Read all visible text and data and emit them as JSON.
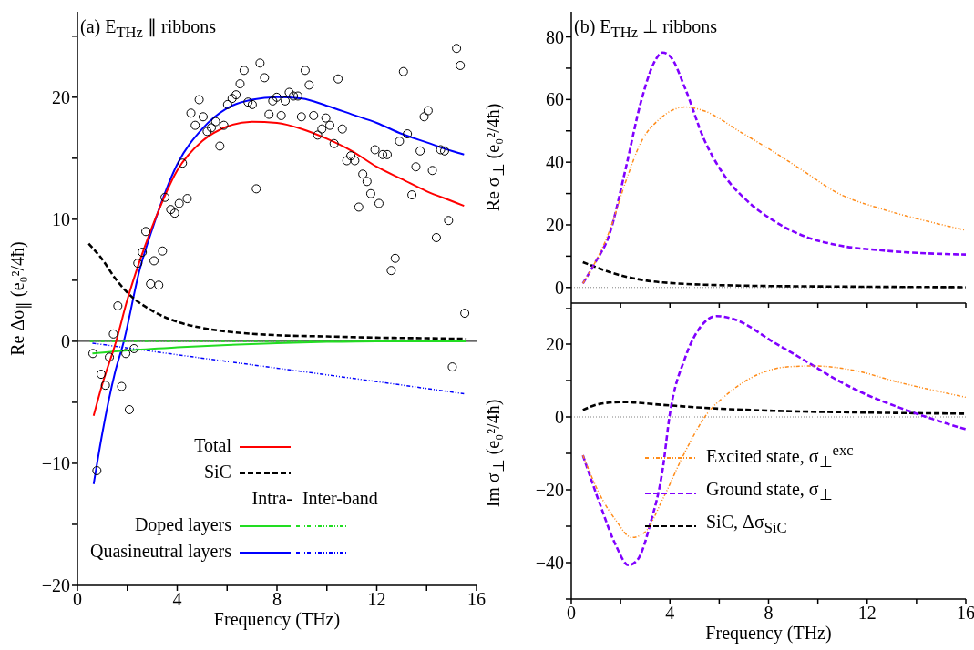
{
  "chart_data": [
    {
      "type": "line",
      "title": "(a) E$_{THz}$ ∥ ribbons",
      "xlabel": "Frequency (THz)",
      "ylabel": "Re Δσ$_{∥}$ (e₀²/4ħ)",
      "xlim": [
        0,
        16
      ],
      "ylim": [
        -20,
        27
      ],
      "xticks": [
        0,
        {
          "value": 2,
          "label": null
        },
        4,
        {
          "value": 6,
          "label": null
        },
        8,
        {
          "value": 10,
          "label": null
        },
        12,
        {
          "value": 14,
          "label": null
        },
        16
      ],
      "yticks": [
        -20,
        {
          "value": -15,
          "label": null
        },
        -10,
        {
          "value": -5,
          "label": null
        },
        0,
        {
          "value": 5,
          "label": null
        },
        10,
        {
          "value": 15,
          "label": null
        },
        20,
        {
          "value": 25,
          "label": null
        }
      ],
      "legend": "bottom",
      "annotations": [
        "Intra-",
        "Inter-band"
      ],
      "ref_lines": [
        {
          "axis": "y",
          "value": 0,
          "color": "#000000",
          "line_style": "solid"
        }
      ],
      "series": [
        {
          "type": "scatter",
          "color": "#000000",
          "marker": "circle",
          "x": [
            15.2,
            15.35,
            7.32,
            6.68,
            7.5,
            6.52,
            9.13,
            9.29,
            10.45,
            13.07,
            4.88,
            6.36,
            6.2,
            6.02,
            4.55,
            5.04,
            4.72,
            5.54,
            5.37,
            5.2,
            5.87,
            6.84,
            7.01,
            7.68,
            7.83,
            7.99,
            8.17,
            8.33,
            8.49,
            8.66,
            8.84,
            8.98,
            9.47,
            9.96,
            9.8,
            10.12,
            9.63,
            10.29,
            10.62,
            5.71,
            4.21,
            3.51,
            3.74,
            3.9,
            4.08,
            4.4,
            7.17,
            10.8,
            10.96,
            11.12,
            11.93,
            12.24,
            12.42,
            11.44,
            11.61,
            11.76,
            12.09,
            11.28,
            12.91,
            13.23,
            13.74,
            13.9,
            14.06,
            13.57,
            14.23,
            14.56,
            14.72,
            13.41,
            14.88,
            14.39,
            12.74,
            12.58,
            15.53,
            2.74,
            2.6,
            2.42,
            3.07,
            3.41,
            2.93,
            3.26,
            1.62,
            1.44,
            2.27,
            0.62,
            1.28,
            1.94,
            0.95,
            1.12,
            1.77,
            2.08,
            0.78,
            15.03
          ],
          "values": [
            24.0,
            22.6,
            22.8,
            22.2,
            21.6,
            21.1,
            22.2,
            21.0,
            21.5,
            22.1,
            19.8,
            20.2,
            19.9,
            19.4,
            18.7,
            18.4,
            17.7,
            18.0,
            17.5,
            17.2,
            17.7,
            19.6,
            19.4,
            18.6,
            19.7,
            20.0,
            18.5,
            19.7,
            20.4,
            20.1,
            20.1,
            18.4,
            18.5,
            18.3,
            17.4,
            17.7,
            16.9,
            16.2,
            17.4,
            16.0,
            14.6,
            11.8,
            10.8,
            10.5,
            11.3,
            11.7,
            12.5,
            14.8,
            15.2,
            14.8,
            15.7,
            15.3,
            15.3,
            13.7,
            13.1,
            12.1,
            11.3,
            11.0,
            16.4,
            17.0,
            15.6,
            18.4,
            18.9,
            14.3,
            14.0,
            15.7,
            15.6,
            12.0,
            9.9,
            8.5,
            6.8,
            5.8,
            2.3,
            9.0,
            7.3,
            6.4,
            6.6,
            7.4,
            4.7,
            4.6,
            2.9,
            0.6,
            -0.6,
            -1.0,
            -1.3,
            -1.0,
            -2.7,
            -3.6,
            -3.7,
            -5.6,
            -10.6,
            -2.1
          ]
        },
        {
          "type": "line",
          "name": "Total",
          "color": "#ff0000",
          "line_style": "solid",
          "x": [
            0.65,
            1,
            1.55,
            2,
            2.5,
            3,
            4,
            5,
            6,
            7,
            8,
            9,
            10,
            11,
            12,
            13,
            14,
            15,
            15.5
          ],
          "values": [
            -6.1,
            -3.5,
            0,
            3.4,
            6.6,
            9.4,
            14.0,
            16.4,
            17.6,
            18.0,
            17.9,
            17.4,
            16.6,
            15.6,
            14.3,
            13.3,
            12.3,
            11.5,
            11.1
          ]
        },
        {
          "type": "line",
          "name": "SiC",
          "color": "#000000",
          "line_style": "dashed",
          "x": [
            0.45,
            1,
            1.5,
            2,
            3,
            4,
            5,
            6,
            8,
            10,
            12,
            14,
            15.6
          ],
          "values": [
            8.0,
            6.7,
            5.2,
            4.0,
            2.5,
            1.6,
            1.1,
            0.8,
            0.5,
            0.4,
            0.3,
            0.25,
            0.2
          ]
        },
        {
          "type": "line",
          "name": "Doped layers",
          "color": "#22dd22",
          "line_style": "solid",
          "x": [
            0.6,
            2,
            4,
            6,
            8,
            10,
            12,
            14,
            15.6
          ],
          "values": [
            -1.0,
            -0.75,
            -0.5,
            -0.3,
            -0.15,
            -0.05,
            0,
            0,
            0
          ]
        },
        {
          "type": "line",
          "color": "#22dd22",
          "line_style": "dotted",
          "x": [
            0.5,
            4,
            8,
            12,
            15.6
          ],
          "values": [
            0,
            0,
            0,
            0,
            0
          ]
        },
        {
          "type": "line",
          "name": "Quasineutral layers",
          "color": "#0000ff",
          "line_style": "solid",
          "x": [
            0.65,
            1,
            1.5,
            1.86,
            2.5,
            3,
            4,
            5,
            6,
            7,
            8,
            9,
            10,
            11,
            12,
            13,
            14,
            15,
            15.5
          ],
          "values": [
            -11.7,
            -7.5,
            -2.6,
            0,
            5.9,
            9.2,
            14.5,
            17.4,
            19.1,
            19.8,
            20.0,
            19.9,
            19.3,
            18.6,
            17.9,
            17.0,
            16.3,
            15.6,
            15.3
          ]
        },
        {
          "type": "line",
          "color": "#0000ff",
          "line_style": "dotted",
          "x": [
            0.6,
            4,
            8,
            12,
            15.5
          ],
          "values": [
            -0.15,
            -1.1,
            -2.2,
            -3.3,
            -4.3
          ]
        }
      ]
    },
    {
      "type": "line",
      "title": "(b) E$_{THz}$ ⊥ ribbons",
      "ylabel": "Re σ$_{⊥}$ (e₀²/4ħ)",
      "xlim": [
        0,
        16
      ],
      "ylim": [
        -5,
        88
      ],
      "tick_labels": "y",
      "xticks": [
        0,
        {
          "value": 2,
          "label": null
        },
        4,
        {
          "value": 6,
          "label": null
        },
        8,
        {
          "value": 10,
          "label": null
        },
        12,
        {
          "value": 14,
          "label": null
        },
        16
      ],
      "yticks": [
        0,
        {
          "value": 10,
          "label": null
        },
        20,
        {
          "value": 30,
          "label": null
        },
        40,
        {
          "value": 50,
          "label": null
        },
        60,
        {
          "value": 70,
          "label": null
        },
        80
      ],
      "ref_lines": [
        {
          "axis": "y",
          "value": 0,
          "color": "#808080",
          "line_style": "dotted"
        }
      ],
      "series": [
        {
          "type": "line",
          "color": "#ff8c1a",
          "line_style": "dotted",
          "x": [
            0.47,
            1.56,
            2.19,
            2.83,
            3.6,
            4.62,
            5.38,
            6.91,
            8.19,
            9.47,
            10.74,
            12.66,
            14.57,
            16
          ],
          "values": [
            1.3,
            18.3,
            33.4,
            46.4,
            53.9,
            57.6,
            56.4,
            49.4,
            43.4,
            36.9,
            30.4,
            24.9,
            20.9,
            18.3
          ]
        },
        {
          "type": "line",
          "color": "#8000ff",
          "line_style": "dashed",
          "x": [
            0.47,
            0.92,
            1.56,
            2.19,
            2.83,
            3.34,
            3.7,
            4.04,
            4.62,
            5.38,
            6.15,
            7.17,
            8.19,
            9.47,
            10.74,
            12.66,
            16
          ],
          "values": [
            1.3,
            7.3,
            17.3,
            37.4,
            59.4,
            71.5,
            75.0,
            73.5,
            63.5,
            47.4,
            36.4,
            27.4,
            21.4,
            16.3,
            13.6,
            11.8,
            10.5
          ]
        },
        {
          "type": "line",
          "color": "#000000",
          "line_style": "dashed",
          "x": [
            0.47,
            1.81,
            3.72,
            6.91,
            10.74,
            16
          ],
          "values": [
            8.1,
            4.3,
            1.6,
            0.6,
            0.3,
            0.1
          ]
        }
      ]
    },
    {
      "type": "line",
      "xlabel": "Frequency (THz)",
      "ylabel": "Im σ$_{⊥}$ (e₀²/4ħ)",
      "xlim": [
        0,
        16
      ],
      "ylim": [
        -50,
        30
      ],
      "xticks": [
        0,
        {
          "value": 2,
          "label": null
        },
        4,
        {
          "value": 6,
          "label": null
        },
        8,
        {
          "value": 10,
          "label": null
        },
        12,
        {
          "value": 14,
          "label": null
        },
        16
      ],
      "yticks": [
        {
          "value": -50,
          "label": null
        },
        -40,
        {
          "value": -30,
          "label": null
        },
        -20,
        {
          "value": -10,
          "label": null
        },
        0,
        {
          "value": 10,
          "label": null
        },
        20,
        {
          "value": 30,
          "label": null
        }
      ],
      "legend": "right",
      "ref_lines": [
        {
          "axis": "y",
          "value": 0,
          "color": "#808080",
          "line_style": "dotted"
        }
      ],
      "series": [
        {
          "type": "line",
          "name": "Excited state, σ$_{⊥}$$^{exc}$",
          "color": "#ff8c1a",
          "line_style": "dotted",
          "x": [
            0.47,
            1.17,
            1.81,
            2.45,
            2.96,
            3.72,
            4.62,
            5.51,
            6.28,
            7.55,
            8.83,
            9.85,
            11.38,
            13.29,
            16
          ],
          "values": [
            -10.5,
            -21.5,
            -28.4,
            -33.1,
            -31.8,
            -22.4,
            -9.5,
            0.9,
            6.0,
            11.6,
            13.8,
            14.0,
            12.9,
            9.5,
            5.4
          ]
        },
        {
          "type": "line",
          "name": "Ground state, σ$_{⊥}$",
          "color": "#8000ff",
          "line_style": "dashed",
          "x": [
            0.47,
            1.17,
            1.81,
            2.32,
            2.7,
            3.21,
            3.72,
            3.98,
            4.62,
            5.26,
            5.89,
            6.66,
            8.19,
            9.47,
            10.74,
            12.01,
            13.29,
            14.57,
            16
          ],
          "values": [
            -10.5,
            -24.1,
            -35.3,
            -40.7,
            -39.1,
            -29.2,
            -13.8,
            0,
            16.3,
            24.9,
            27.7,
            26.7,
            20.6,
            15.5,
            10.3,
            6.0,
            2.6,
            -0.4,
            -3.4
          ]
        },
        {
          "type": "line",
          "name": "SiC, Δσ$_{SiC}$",
          "color": "#000000",
          "line_style": "dashed",
          "x": [
            0.47,
            1.17,
            2.07,
            3.72,
            5.64,
            8.19,
            12.01,
            16
          ],
          "values": [
            1.9,
            3.6,
            4.1,
            3.3,
            2.4,
            1.7,
            1.2,
            0.9
          ]
        }
      ]
    }
  ]
}
